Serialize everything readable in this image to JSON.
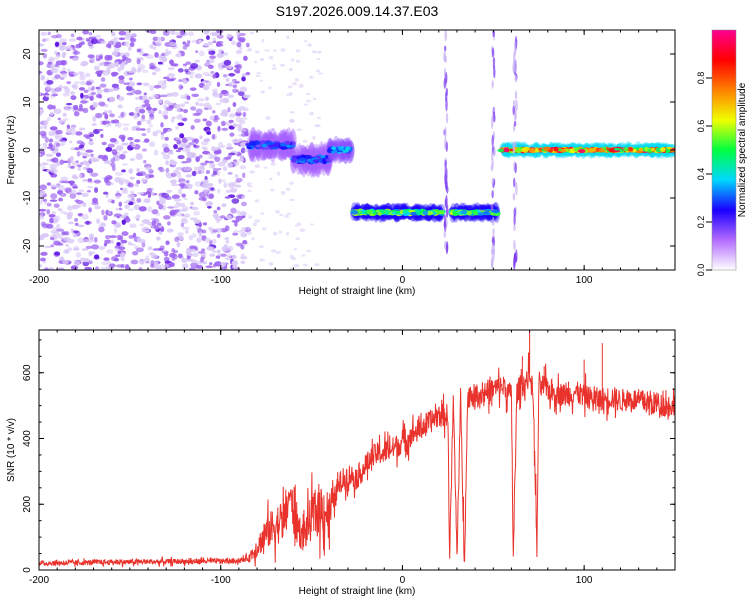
{
  "title": "S197.2026.009.14.37.E03",
  "chart_data": [
    {
      "type": "heatmap",
      "xlabel": "Height of straight line (km)",
      "ylabel": "Frequency (Hz)",
      "xlim": [
        -200,
        150
      ],
      "ylim": [
        -25,
        25
      ],
      "xticks": [
        -200,
        -100,
        0,
        100
      ],
      "yticks": [
        -20,
        -10,
        0,
        10,
        20
      ],
      "grid": false,
      "colorbar": {
        "label": "Normalized spectral amplitude",
        "range": [
          0,
          1
        ],
        "ticks": [
          "0.0",
          "0.2",
          "0.4",
          "0.6",
          "0.8"
        ],
        "colors": [
          "#ffffff",
          "#b36bff",
          "#1a00ff",
          "#00d8ff",
          "#00ff40",
          "#f0ff00",
          "#ff8000",
          "#ff0000",
          "#ff0090"
        ]
      },
      "regions": [
        {
          "x": [
            -200,
            -85
          ],
          "freq_center": 0,
          "freq_spread": 25,
          "amplitude": 0.15
        },
        {
          "x": [
            -85,
            -60
          ],
          "freq_center": 1,
          "freq_spread": 2,
          "amplitude": 0.3
        },
        {
          "x": [
            -60,
            -40
          ],
          "freq_center": -2,
          "freq_spread": 2,
          "amplitude": 0.3
        },
        {
          "x": [
            -40,
            -28
          ],
          "freq_center": 0,
          "freq_spread": 1.5,
          "amplitude": 0.35
        },
        {
          "x": [
            -27,
            22
          ],
          "freq_center": -13,
          "freq_spread": 1,
          "amplitude": 0.55
        },
        {
          "x": [
            27,
            52
          ],
          "freq_center": -13,
          "freq_spread": 1,
          "amplitude": 0.55
        },
        {
          "x": [
            54,
            150
          ],
          "freq_center": 0,
          "freq_spread": 0.8,
          "amplitude": 0.85
        }
      ],
      "vertical_streaks": [
        24,
        50,
        62
      ]
    },
    {
      "type": "line",
      "xlabel": "Height of straight line (km)",
      "ylabel": "SNR (10 * v/v)",
      "xlim": [
        -200,
        150
      ],
      "ylim": [
        0,
        730
      ],
      "xticks": [
        -200,
        -100,
        0,
        100
      ],
      "yticks": [
        0,
        200,
        400,
        600
      ],
      "grid": false,
      "series_color": "#e8322b",
      "x": [
        -200,
        -180,
        -160,
        -140,
        -120,
        -100,
        -90,
        -85,
        -80,
        -75,
        -70,
        -65,
        -62,
        -58,
        -55,
        -50,
        -45,
        -40,
        -35,
        -30,
        -25,
        -20,
        -15,
        -10,
        -5,
        0,
        5,
        10,
        15,
        20,
        23,
        25,
        26,
        28,
        30,
        32,
        34,
        36,
        40,
        45,
        50,
        55,
        60,
        61,
        63,
        65,
        68,
        70,
        72,
        74,
        75,
        78,
        80,
        85,
        90,
        95,
        100,
        105,
        110,
        115,
        120,
        125,
        130,
        135,
        140,
        145,
        150
      ],
      "values": [
        20,
        22,
        24,
        25,
        26,
        27,
        28,
        35,
        70,
        110,
        140,
        150,
        230,
        140,
        100,
        160,
        190,
        170,
        260,
        290,
        280,
        320,
        350,
        360,
        370,
        390,
        410,
        430,
        450,
        470,
        470,
        470,
        40,
        520,
        40,
        520,
        40,
        530,
        530,
        540,
        550,
        560,
        530,
        40,
        540,
        560,
        570,
        600,
        530,
        40,
        550,
        560,
        550,
        540,
        530,
        540,
        530,
        520,
        520,
        525,
        515,
        520,
        515,
        510,
        505,
        500,
        500
      ],
      "peaks": [
        {
          "x": 66,
          "y": 650
        },
        {
          "x": 70,
          "y": 725
        },
        {
          "x": 78,
          "y": 620
        },
        {
          "x": 100,
          "y": 640
        },
        {
          "x": 110,
          "y": 690
        }
      ]
    }
  ]
}
